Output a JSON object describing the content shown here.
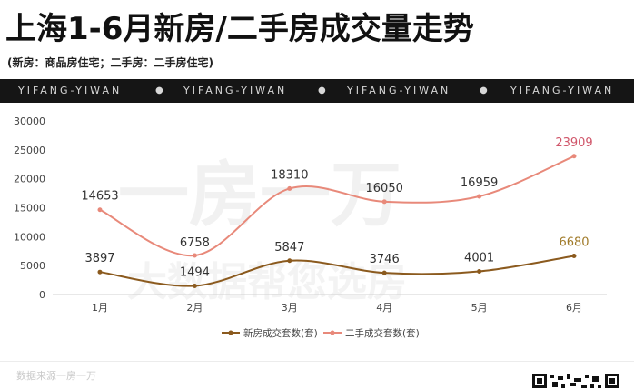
{
  "header": {
    "title": "上海1-6月新房/二手房成交量走势",
    "subtitle": "(新房：商品房住宅；二手房：二手房住宅)",
    "band_text": [
      "YIFANG-YIWAN",
      "YIFANG-YIWAN",
      "YIFANG-YIWAN",
      "YIFANG-YIWAN"
    ],
    "band_dot": "●"
  },
  "watermark": {
    "line1": "一房一万",
    "line2": "大数据帮您选房"
  },
  "footer": {
    "source": "数据来源一房一万"
  },
  "colors": {
    "new": "#8b5a1e",
    "new_label_last": "#a07a28",
    "second": "#e8897a",
    "second_label_last": "#d0566a"
  },
  "chart_data": {
    "type": "line",
    "categories": [
      "1月",
      "2月",
      "3月",
      "4月",
      "5月",
      "6月"
    ],
    "ylim": [
      0,
      30000
    ],
    "yticks": [
      "0",
      "5000",
      "10000",
      "15000",
      "20000",
      "25000",
      "30000"
    ],
    "series": [
      {
        "name": "新房成交套数(套)",
        "values": [
          3897,
          1494,
          5847,
          3746,
          4001,
          6680
        ],
        "labels": [
          "3897",
          "1494",
          "5847",
          "3746",
          "4001",
          "6680"
        ]
      },
      {
        "name": "二手成交套数(套)",
        "values": [
          14653,
          6758,
          18310,
          16050,
          16959,
          23909
        ],
        "labels": [
          "14653",
          "6758",
          "18310",
          "16050",
          "16959",
          "23909"
        ]
      }
    ],
    "legend_position": "bottom",
    "grid": false
  }
}
